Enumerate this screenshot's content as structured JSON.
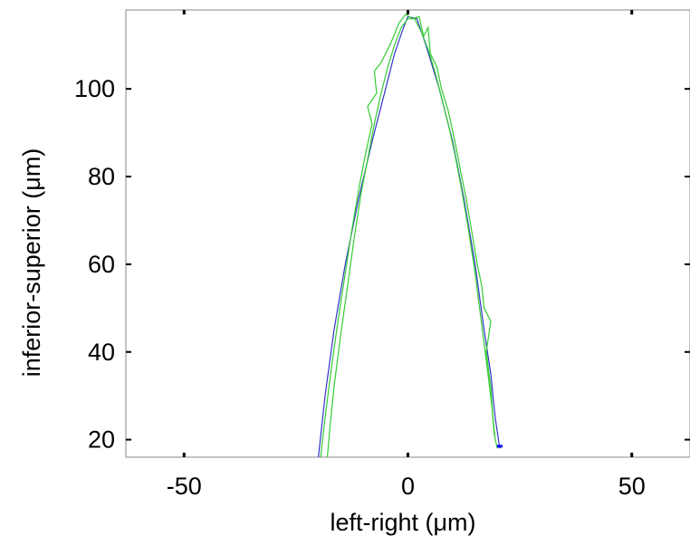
{
  "chart_data": {
    "type": "line",
    "title": "",
    "xlabel": "left-right (μm)",
    "ylabel": "inferior-superior (μm)",
    "xlim": [
      -63,
      63
    ],
    "ylim": [
      16,
      118
    ],
    "xticks": [
      -50,
      0,
      50
    ],
    "xtick_labels": [
      "-50",
      "0",
      "50"
    ],
    "yticks": [
      20,
      40,
      60,
      80,
      100
    ],
    "ytick_labels": [
      "20",
      "40",
      "60",
      "80",
      "100"
    ],
    "grid": false,
    "legend": "none",
    "series": [
      {
        "color": "#3333cc",
        "points": [
          [
            -20.0,
            16.0
          ],
          [
            -18.5,
            30.0
          ],
          [
            -16.5,
            45.0
          ],
          [
            -14.0,
            60.0
          ],
          [
            -11.0,
            75.0
          ],
          [
            -8.0,
            88.0
          ],
          [
            -5.0,
            100.0
          ],
          [
            -3.0,
            108.0
          ],
          [
            -1.0,
            114.0
          ],
          [
            0.0,
            116.5
          ],
          [
            2.0,
            116.0
          ],
          [
            4.0,
            110.0
          ],
          [
            7.0,
            100.0
          ],
          [
            10.0,
            88.0
          ],
          [
            12.5,
            75.0
          ],
          [
            15.0,
            60.0
          ],
          [
            17.0,
            45.0
          ],
          [
            18.5,
            35.0
          ],
          [
            19.5,
            25.0
          ],
          [
            20.5,
            18.0
          ]
        ]
      },
      {
        "color": "#33cc33",
        "points": [
          [
            -19.5,
            16.0
          ],
          [
            -18.5,
            25.0
          ],
          [
            -17.0,
            37.0
          ],
          [
            -15.5,
            48.0
          ],
          [
            -14.0,
            58.0
          ],
          [
            -12.5,
            68.0
          ],
          [
            -11.0,
            77.0
          ],
          [
            -9.5,
            85.0
          ],
          [
            -8.0,
            92.0
          ],
          [
            -9.0,
            96.0
          ],
          [
            -7.0,
            99.0
          ],
          [
            -7.5,
            104.0
          ],
          [
            -6.0,
            106.0
          ],
          [
            -4.0,
            110.0
          ],
          [
            -2.0,
            115.0
          ],
          [
            -0.5,
            117.0
          ],
          [
            1.0,
            116.0
          ],
          [
            2.5,
            116.5
          ],
          [
            3.5,
            112.0
          ],
          [
            4.5,
            114.0
          ],
          [
            5.0,
            108.0
          ],
          [
            6.5,
            105.0
          ],
          [
            7.5,
            100.0
          ],
          [
            9.0,
            95.0
          ],
          [
            10.5,
            88.0
          ],
          [
            12.0,
            80.0
          ],
          [
            13.0,
            75.0
          ],
          [
            14.5,
            66.0
          ],
          [
            15.5,
            60.0
          ],
          [
            16.5,
            55.0
          ],
          [
            17.0,
            50.0
          ],
          [
            18.5,
            47.0
          ],
          [
            17.5,
            40.0
          ],
          [
            18.5,
            32.0
          ],
          [
            19.0,
            25.0
          ],
          [
            19.5,
            20.0
          ],
          [
            20.0,
            18.0
          ]
        ]
      },
      {
        "color": "#33cc33",
        "points": [
          [
            -18.0,
            16.0
          ],
          [
            -17.5,
            22.0
          ],
          [
            -16.5,
            32.0
          ],
          [
            -15.0,
            44.0
          ],
          [
            -13.5,
            55.0
          ],
          [
            -12.0,
            66.0
          ],
          [
            -10.5,
            76.0
          ],
          [
            -9.0,
            84.0
          ],
          [
            -7.5,
            92.0
          ],
          [
            -6.0,
            99.0
          ],
          [
            -4.5,
            105.0
          ],
          [
            -3.0,
            110.0
          ],
          [
            -1.5,
            114.0
          ],
          [
            0.0,
            116.0
          ],
          [
            1.5,
            116.0
          ],
          [
            3.0,
            113.0
          ],
          [
            4.5,
            109.0
          ],
          [
            6.0,
            104.0
          ],
          [
            7.5,
            98.0
          ],
          [
            9.0,
            92.0
          ],
          [
            10.5,
            85.0
          ],
          [
            12.0,
            77.0
          ],
          [
            13.5,
            68.0
          ],
          [
            15.0,
            58.0
          ],
          [
            16.0,
            50.0
          ],
          [
            17.0,
            42.0
          ],
          [
            18.0,
            34.0
          ],
          [
            18.8,
            27.0
          ],
          [
            19.3,
            21.0
          ]
        ]
      }
    ],
    "markers": [
      {
        "x": 20.5,
        "y": 18.5,
        "color": "#0000ee"
      }
    ]
  }
}
